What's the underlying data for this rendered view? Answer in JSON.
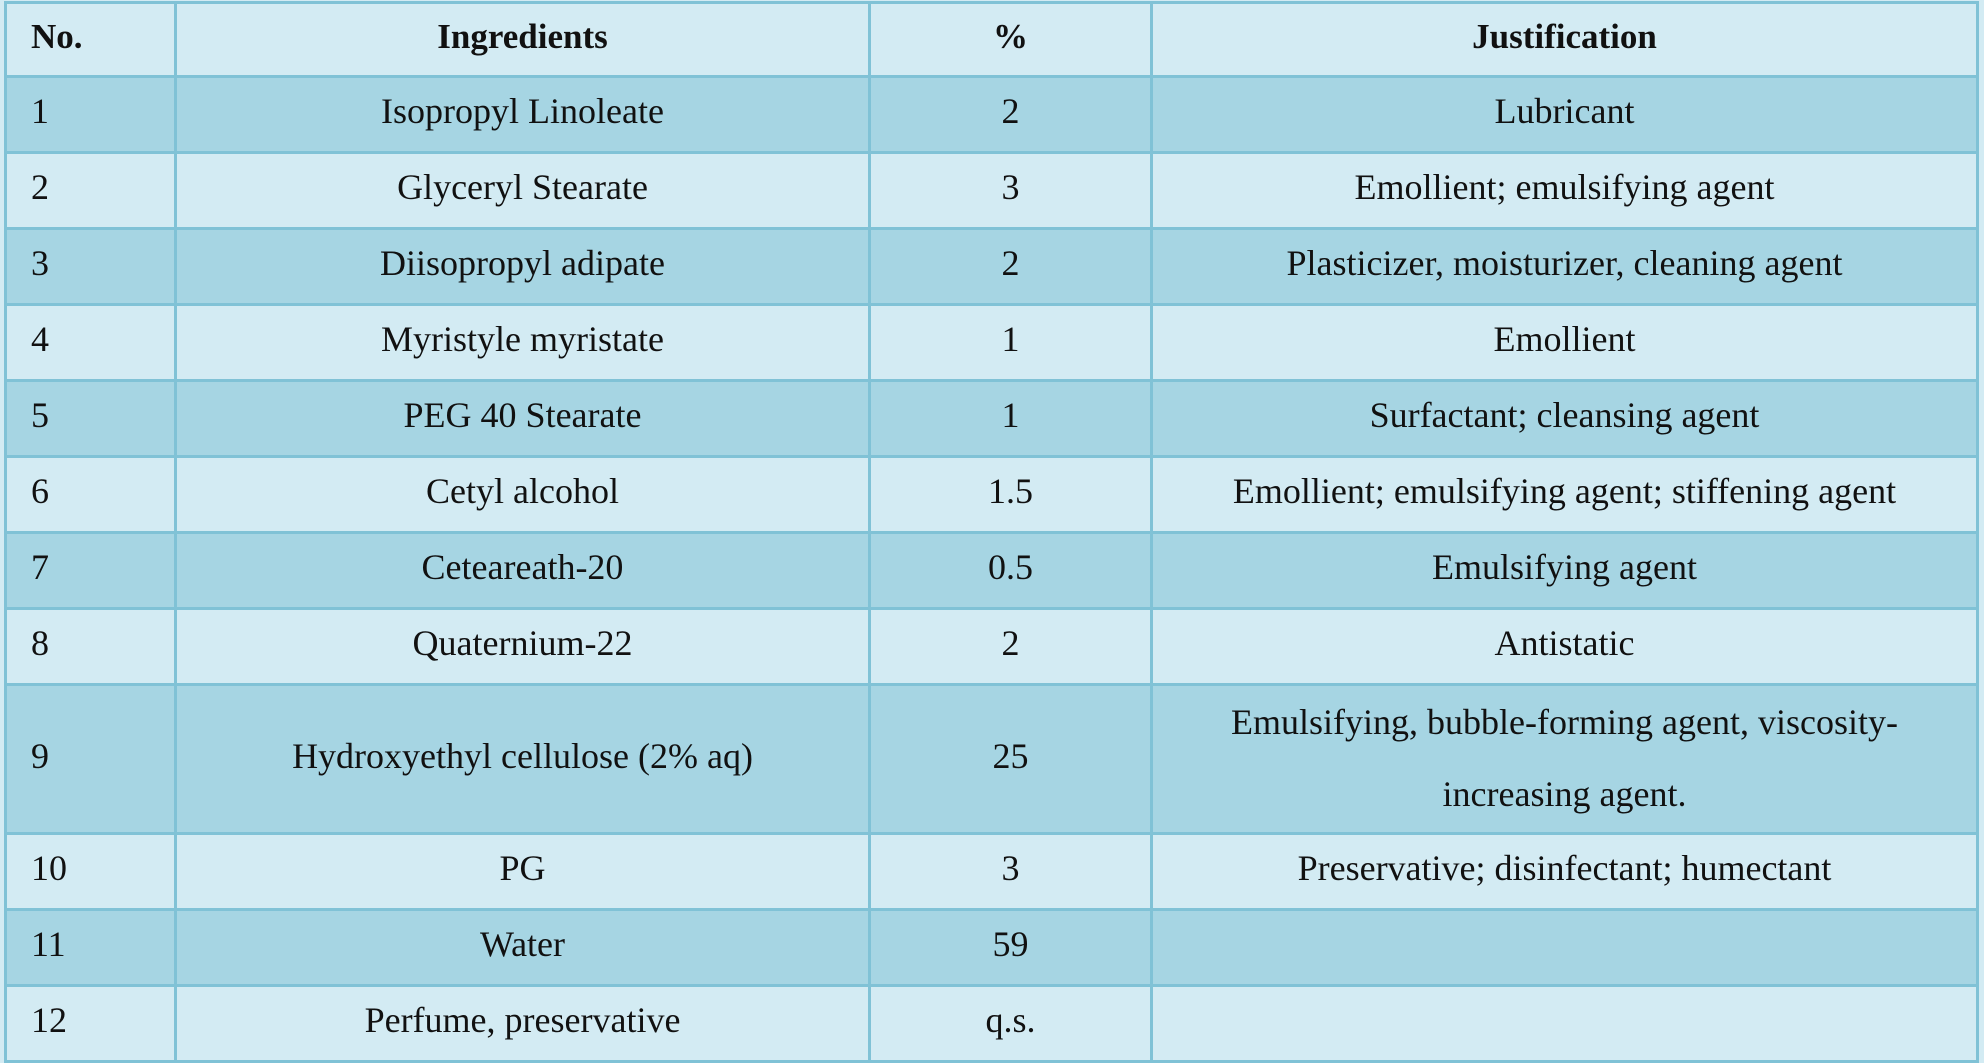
{
  "table": {
    "headers": {
      "no": "No.",
      "ingredients": "Ingredients",
      "percent": "%",
      "justification": "Justification"
    },
    "rows": [
      {
        "no": "1",
        "ingredient": "Isopropyl Linoleate",
        "percent": "2",
        "justification": "Lubricant"
      },
      {
        "no": "2",
        "ingredient": "Glyceryl Stearate",
        "percent": "3",
        "justification": "Emollient; emulsifying agent"
      },
      {
        "no": "3",
        "ingredient": "Diisopropyl adipate",
        "percent": "2",
        "justification": "Plasticizer, moisturizer, cleaning agent"
      },
      {
        "no": "4",
        "ingredient": "Myristyle myristate",
        "percent": "1",
        "justification": "Emollient"
      },
      {
        "no": "5",
        "ingredient": "PEG 40 Stearate",
        "percent": "1",
        "justification": "Surfactant; cleansing agent"
      },
      {
        "no": "6",
        "ingredient": "Cetyl alcohol",
        "percent": "1.5",
        "justification": "Emollient; emulsifying agent; stiffening agent"
      },
      {
        "no": "7",
        "ingredient": "Ceteareath-20",
        "percent": "0.5",
        "justification": "Emulsifying agent"
      },
      {
        "no": "8",
        "ingredient": "Quaternium-22",
        "percent": "2",
        "justification": "Antistatic"
      },
      {
        "no": "9",
        "ingredient": "Hydroxyethyl cellulose (2% aq)",
        "percent": "25",
        "justification": "Emulsifying, bubble-forming agent, viscosity-increasing agent."
      },
      {
        "no": "10",
        "ingredient": "PG",
        "percent": "3",
        "justification": "Preservative; disinfectant; humectant"
      },
      {
        "no": "11",
        "ingredient": "Water",
        "percent": "59",
        "justification": ""
      },
      {
        "no": "12",
        "ingredient": "Perfume, preservative",
        "percent": "q.s.",
        "justification": ""
      }
    ]
  },
  "colors": {
    "row_light": "#d3ebf3",
    "row_dark": "#a6d5e3",
    "border": "#80c2d6"
  }
}
